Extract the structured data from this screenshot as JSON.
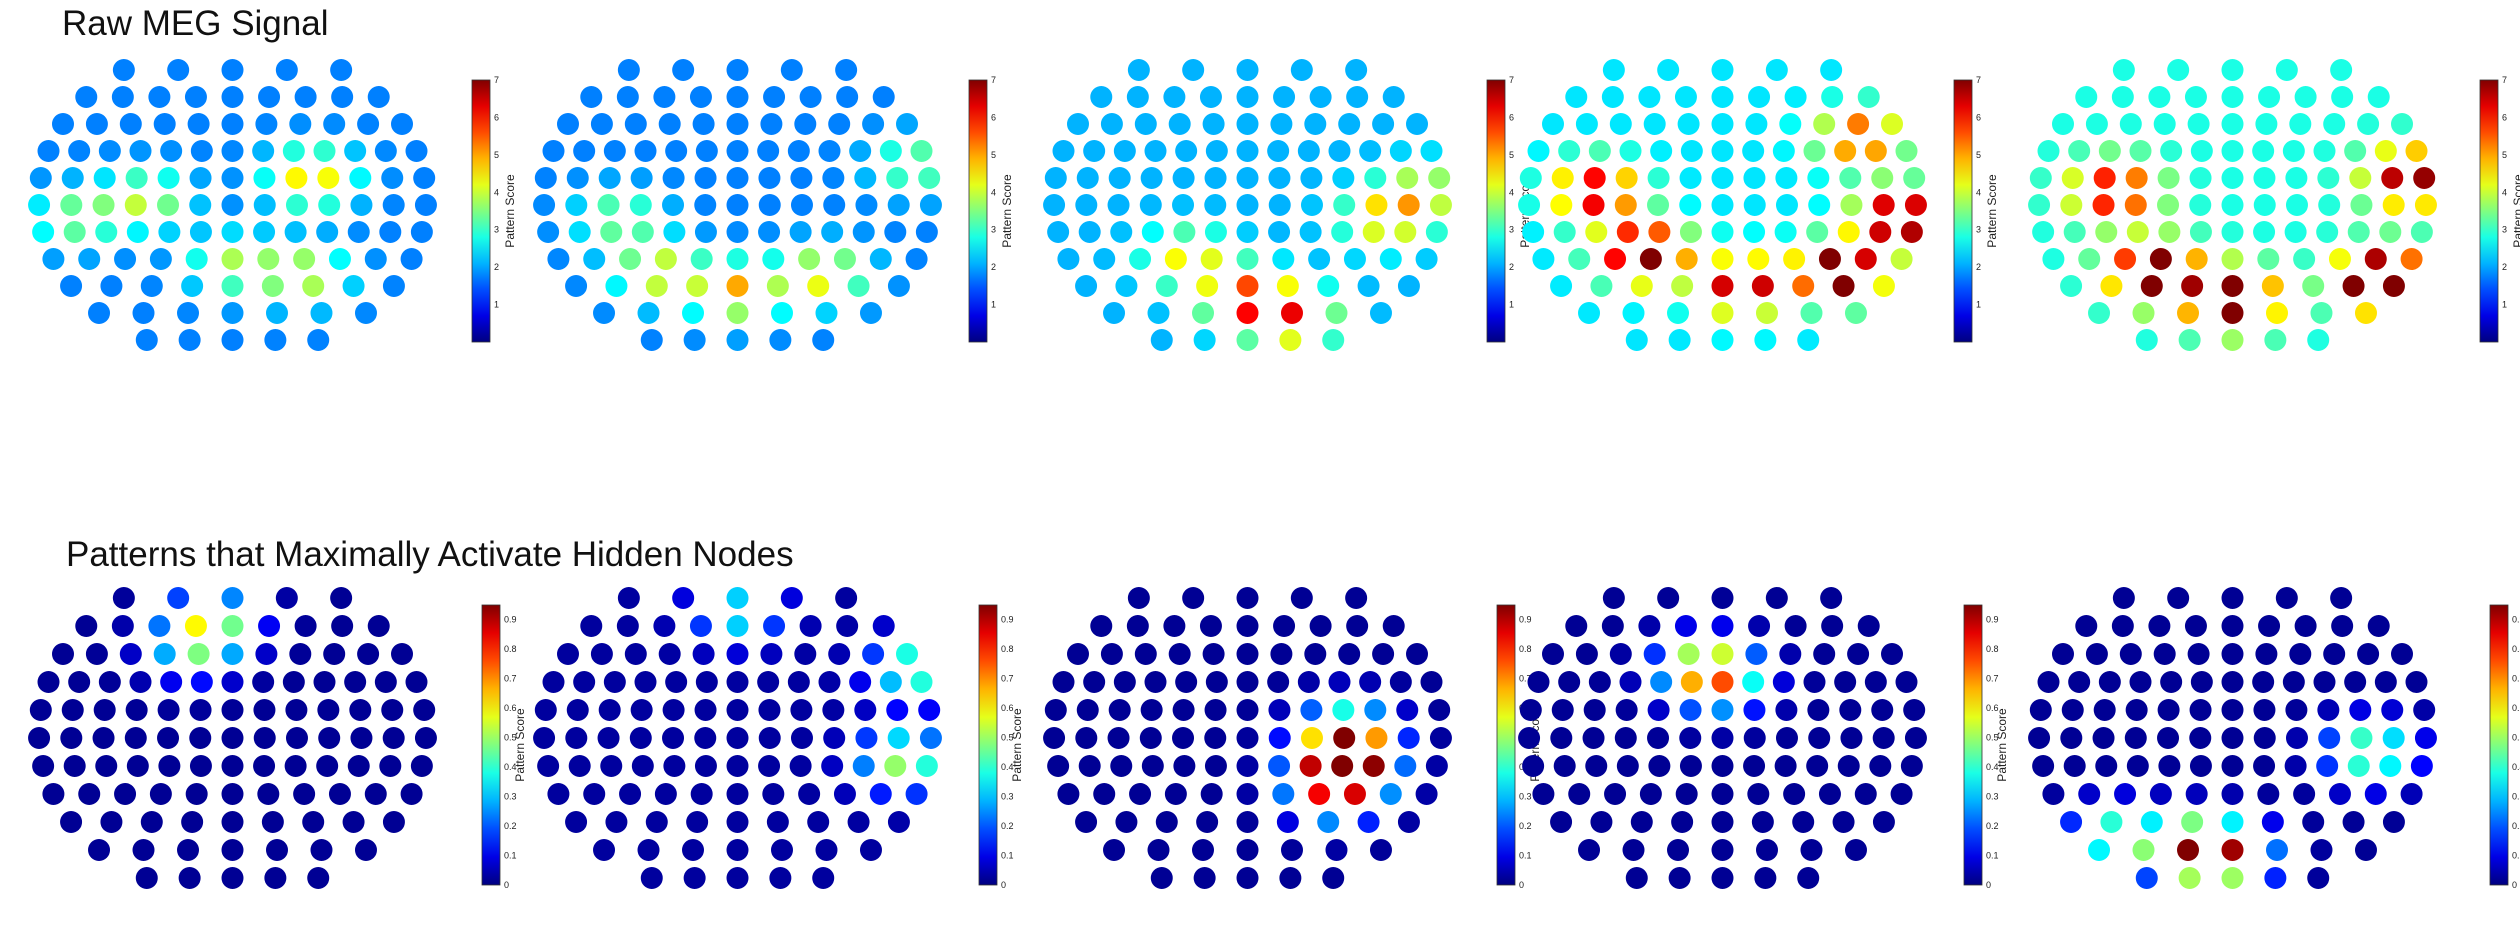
{
  "titles": {
    "raw": "Raw MEG Signal",
    "patterns": "Patterns that Maximally Activate Hidden Nodes"
  },
  "chart_data": [
    {
      "group": "raw",
      "type": "heatmap",
      "colorbar": {
        "label": "Pattern Score",
        "min": 0,
        "max": 7,
        "ticks": [
          1,
          2,
          3,
          4,
          5,
          6,
          7
        ]
      },
      "panels": [
        {
          "hot": [
            [
              0.7,
              0.4,
              3.0
            ],
            [
              0.28,
              0.48,
              2.2
            ],
            [
              0.5,
              0.72,
              2.0
            ],
            [
              0.68,
              0.76,
              2.4
            ],
            [
              0.1,
              0.55,
              1.8
            ]
          ],
          "base": 0.25
        },
        {
          "hot": [
            [
              0.5,
              0.82,
              3.2
            ],
            [
              0.3,
              0.75,
              2.6
            ],
            [
              0.72,
              0.76,
              2.8
            ],
            [
              0.2,
              0.55,
              1.8
            ],
            [
              0.95,
              0.35,
              1.8
            ]
          ],
          "base": 0.25
        },
        {
          "hot": [
            [
              0.5,
              0.85,
              3.8
            ],
            [
              0.62,
              0.92,
              3.2
            ],
            [
              0.35,
              0.7,
              2.4
            ],
            [
              0.85,
              0.55,
              2.6
            ],
            [
              0.95,
              0.45,
              2.0
            ]
          ],
          "base": 0.3
        },
        {
          "hot": [
            [
              0.3,
              0.68,
              5.8
            ],
            [
              0.8,
              0.75,
              6.0
            ],
            [
              0.95,
              0.55,
              5.5
            ],
            [
              0.18,
              0.45,
              4.5
            ],
            [
              0.55,
              0.8,
              4.8
            ],
            [
              0.85,
              0.25,
              3.5
            ]
          ],
          "base": 0.35
        },
        {
          "hot": [
            [
              0.88,
              0.78,
              6.8
            ],
            [
              0.3,
              0.75,
              5.5
            ],
            [
              0.5,
              0.85,
              5.8
            ],
            [
              0.2,
              0.45,
              4.0
            ],
            [
              0.95,
              0.4,
              4.5
            ]
          ],
          "base": 0.4
        }
      ]
    },
    {
      "group": "patterns",
      "type": "heatmap",
      "colorbar": {
        "label": "Pattern Score",
        "min": 0,
        "max": 0.95,
        "ticks": [
          0,
          0.1,
          0.2,
          0.3,
          0.4,
          0.5,
          0.6,
          0.7,
          0.8,
          0.9
        ]
      },
      "panels": [
        {
          "hot": [
            [
              0.45,
              0.08,
              0.45
            ],
            [
              0.4,
              0.18,
              0.35
            ]
          ],
          "base": 0.02
        },
        {
          "hot": [
            [
              0.5,
              0.05,
              0.35
            ],
            [
              0.95,
              0.25,
              0.45
            ],
            [
              0.92,
              0.58,
              0.5
            ]
          ],
          "base": 0.03
        },
        {
          "hot": [
            [
              0.75,
              0.58,
              0.98
            ],
            [
              0.72,
              0.68,
              0.72
            ],
            [
              0.75,
              0.48,
              0.5
            ]
          ],
          "base": 0.02
        },
        {
          "hot": [
            [
              0.45,
              0.25,
              0.55
            ],
            [
              0.5,
              0.3,
              0.38
            ]
          ],
          "base": 0.02
        },
        {
          "hot": [
            [
              0.4,
              0.9,
              0.85
            ],
            [
              0.5,
              0.92,
              0.55
            ],
            [
              0.2,
              0.85,
              0.45
            ],
            [
              0.85,
              0.55,
              0.5
            ]
          ],
          "base": 0.02
        }
      ]
    }
  ]
}
